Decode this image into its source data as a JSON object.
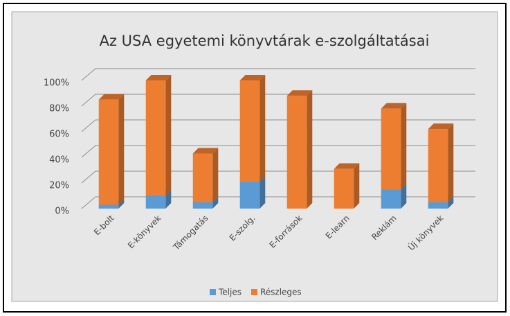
{
  "chart_data": {
    "type": "bar3d_stacked",
    "title": "Az USA egyetemi könyvtárak e-szolgáltatásai",
    "categories": [
      "E-bolt",
      "E-könyvek",
      "Támogatás",
      "E-szolg.",
      "E-források",
      "E-learn",
      "Reklám",
      "Új könyvek"
    ],
    "series": [
      {
        "name": "Teljes",
        "color": "#5b9bd5",
        "values": [
          3,
          10,
          5,
          21,
          0,
          0,
          15,
          5
        ]
      },
      {
        "name": "Részleges",
        "color": "#ed7d31",
        "values": [
          82,
          90,
          38,
          79,
          88,
          31,
          63,
          57
        ]
      }
    ],
    "ylim": [
      0,
      100
    ],
    "yticks": [
      {
        "value": 0,
        "label": "0%"
      },
      {
        "value": 20,
        "label": "20%"
      },
      {
        "value": 40,
        "label": "40%"
      },
      {
        "value": 60,
        "label": "60%"
      },
      {
        "value": 80,
        "label": "80%"
      },
      {
        "value": 100,
        "label": "100%"
      }
    ],
    "grid": true,
    "legend": "bottom"
  }
}
